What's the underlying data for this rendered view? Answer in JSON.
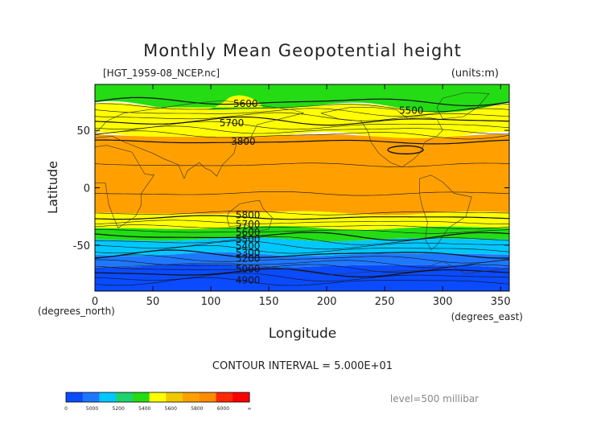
{
  "chart_data": {
    "type": "heatmap",
    "title": "Monthly Mean Geopotential height",
    "subtitle": "[HGT_1959-08_NCEP.nc]",
    "units": "(units:m)",
    "xlabel": "Longitude",
    "ylabel": "Latitude",
    "x_unit_label": "(degrees_east)",
    "y_unit_label": "(degrees_north)",
    "xlim": [
      0,
      357.5
    ],
    "ylim": [
      -90,
      90
    ],
    "x_ticks": [
      0,
      50,
      100,
      150,
      200,
      250,
      300,
      350
    ],
    "y_ticks": [
      50,
      0,
      -50
    ],
    "contour_interval": "CONTOUR INTERVAL = 5.000E+01",
    "level": "level=500 millibar",
    "colorbar": {
      "labels": [
        "0",
        "5000",
        "5200",
        "5400",
        "5600",
        "5800",
        "6000",
        "∞"
      ],
      "colors": [
        "#0a4bff",
        "#1e78ff",
        "#00c8ff",
        "#1ed26e",
        "#23dc14",
        "#ffff00",
        "#f0c800",
        "#ffa000",
        "#ff8c00",
        "#ff2800",
        "#ff0000"
      ]
    },
    "contour_labels": [
      {
        "text": "5600",
        "lon": 130,
        "lat": 74
      },
      {
        "text": "5700",
        "lon": 118,
        "lat": 57
      },
      {
        "text": "3800",
        "lon": 128,
        "lat": 41
      },
      {
        "text": "5500",
        "lon": 273,
        "lat": 68
      },
      {
        "text": "5800",
        "lon": 132,
        "lat": -23
      },
      {
        "text": "5700",
        "lon": 132,
        "lat": -31
      },
      {
        "text": "5600",
        "lon": 132,
        "lat": -38
      },
      {
        "text": "5500",
        "lon": 132,
        "lat": -44
      },
      {
        "text": "5400",
        "lon": 132,
        "lat": -50
      },
      {
        "text": "5300",
        "lon": 132,
        "lat": -56
      },
      {
        "text": "5200",
        "lon": 132,
        "lat": -61
      },
      {
        "text": "5000",
        "lon": 132,
        "lat": -70
      },
      {
        "text": "4900",
        "lon": 132,
        "lat": -80
      }
    ],
    "bands": [
      {
        "from_lat": 90,
        "to_lat": 70,
        "color": "#23dc14",
        "value": "< 5600"
      },
      {
        "from_lat": 70,
        "to_lat": 45,
        "color": "#ffff00",
        "value": "5600–5800"
      },
      {
        "from_lat": 45,
        "to_lat": -22,
        "color": "#ffa000",
        "value": "> 5800"
      },
      {
        "from_lat": -22,
        "to_lat": -35,
        "color": "#ffff00",
        "value": "5600–5800"
      },
      {
        "from_lat": -35,
        "to_lat": -45,
        "color": "#23dc14",
        "value": "5400–5600"
      },
      {
        "from_lat": -45,
        "to_lat": -58,
        "color": "#00c8ff",
        "value": "5200–5400"
      },
      {
        "from_lat": -58,
        "to_lat": -68,
        "color": "#1e78ff",
        "value": "5000–5200"
      },
      {
        "from_lat": -68,
        "to_lat": -90,
        "color": "#0a4bff",
        "value": "< 5000"
      }
    ]
  }
}
